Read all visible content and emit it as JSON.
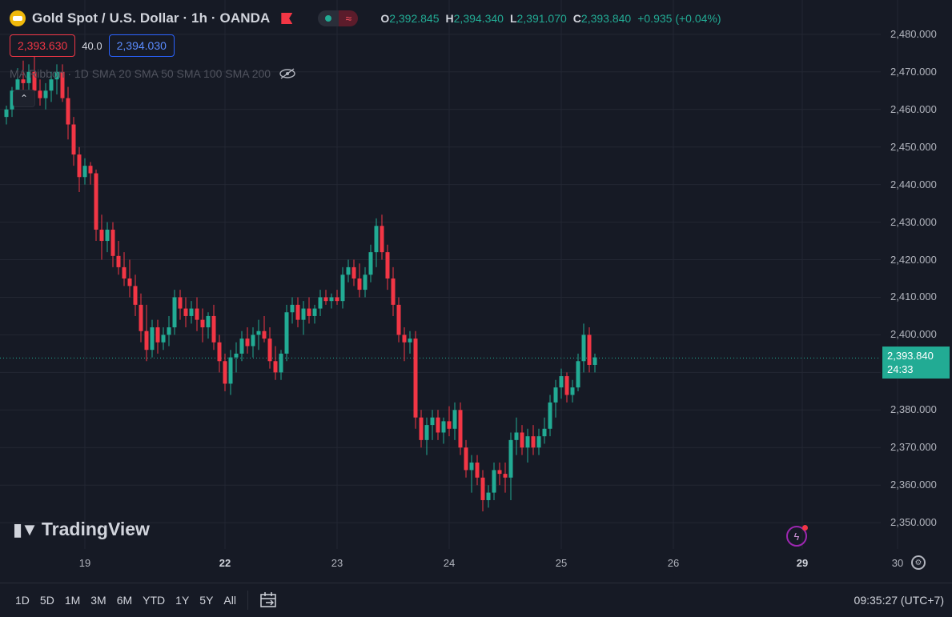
{
  "header": {
    "symbol_title": "Gold Spot / U.S. Dollar · 1h · OANDA",
    "ohlc": {
      "o_label": "O",
      "o_value": "2,392.845",
      "h_label": "H",
      "h_value": "2,394.340",
      "l_label": "L",
      "l_value": "2,391.070",
      "c_label": "C",
      "c_value": "2,393.840",
      "change": "+0.935 (+0.04%)"
    },
    "bid": "2,393.630",
    "spread": "40.0",
    "ask": "2,394.030"
  },
  "indicator": {
    "label": "MA Ribbon · 1D SMA 20 SMA 50 SMA 100 SMA 200"
  },
  "icons": {
    "logo": "gold-coin-icon",
    "flag": "flag-icon",
    "eye": "eye-crossed-icon",
    "collapse": "chevron-up-icon",
    "lightning": "lightning-icon",
    "settings": "gear-icon",
    "compare": "calendar-compare-icon"
  },
  "brand": "TradingView",
  "last_price": {
    "price": "2,393.840",
    "countdown": "24:33"
  },
  "time_ranges": [
    "1D",
    "5D",
    "1M",
    "3M",
    "6M",
    "YTD",
    "1Y",
    "5Y",
    "All"
  ],
  "clock": "09:35:27 (UTC+7)",
  "colors": {
    "up": "#22ab94",
    "down": "#f23645",
    "bg": "#161a25",
    "grid": "#232733"
  },
  "chart_data": {
    "type": "candlestick",
    "y_ticks": [
      "2,480.000",
      "2,470.000",
      "2,460.000",
      "2,450.000",
      "2,440.000",
      "2,430.000",
      "2,420.000",
      "2,410.000",
      "2,400.000",
      "2,390.000",
      "2,380.000",
      "2,370.000",
      "2,360.000",
      "2,350.000"
    ],
    "y_tick_values": [
      2480,
      2470,
      2460,
      2450,
      2440,
      2430,
      2420,
      2410,
      2400,
      2390,
      2380,
      2370,
      2360,
      2350
    ],
    "x_labels": [
      {
        "label": "19",
        "bold": false,
        "bar": 14
      },
      {
        "label": "22",
        "bold": true,
        "bar": 39
      },
      {
        "label": "23",
        "bold": false,
        "bar": 59
      },
      {
        "label": "24",
        "bold": false,
        "bar": 79
      },
      {
        "label": "25",
        "bold": false,
        "bar": 99
      },
      {
        "label": "26",
        "bold": false,
        "bar": 119
      },
      {
        "label": "29",
        "bold": true,
        "bar": 142
      },
      {
        "label": "30",
        "bold": false,
        "bar": 159
      }
    ],
    "ylim": [
      2343,
      2487
    ],
    "current_price": 2393.84,
    "ohlc": [
      [
        2458,
        2461,
        2456,
        2460
      ],
      [
        2460,
        2466,
        2458,
        2465
      ],
      [
        2465,
        2471,
        2463,
        2468
      ],
      [
        2468,
        2473,
        2464,
        2467
      ],
      [
        2467,
        2472,
        2465,
        2470
      ],
      [
        2470,
        2474,
        2466,
        2465
      ],
      [
        2465,
        2468,
        2461,
        2463
      ],
      [
        2463,
        2467,
        2460,
        2465
      ],
      [
        2465,
        2470,
        2462,
        2468
      ],
      [
        2468,
        2472,
        2464,
        2470
      ],
      [
        2470,
        2472,
        2462,
        2463
      ],
      [
        2463,
        2466,
        2452,
        2456
      ],
      [
        2456,
        2458,
        2445,
        2448
      ],
      [
        2448,
        2450,
        2438,
        2442
      ],
      [
        2442,
        2447,
        2440,
        2445
      ],
      [
        2445,
        2446,
        2440,
        2443
      ],
      [
        2443,
        2444,
        2425,
        2428
      ],
      [
        2428,
        2432,
        2420,
        2425
      ],
      [
        2425,
        2430,
        2422,
        2428
      ],
      [
        2428,
        2430,
        2418,
        2421
      ],
      [
        2421,
        2425,
        2416,
        2418
      ],
      [
        2418,
        2422,
        2413,
        2415
      ],
      [
        2415,
        2420,
        2410,
        2413
      ],
      [
        2413,
        2416,
        2405,
        2408
      ],
      [
        2408,
        2411,
        2398,
        2401
      ],
      [
        2401,
        2408,
        2393,
        2396
      ],
      [
        2396,
        2404,
        2394,
        2402
      ],
      [
        2402,
        2404,
        2395,
        2398
      ],
      [
        2398,
        2402,
        2396,
        2400
      ],
      [
        2400,
        2405,
        2397,
        2402
      ],
      [
        2402,
        2412,
        2400,
        2410
      ],
      [
        2410,
        2412,
        2404,
        2407
      ],
      [
        2407,
        2410,
        2402,
        2405
      ],
      [
        2405,
        2409,
        2403,
        2407
      ],
      [
        2407,
        2410,
        2401,
        2404
      ],
      [
        2404,
        2407,
        2398,
        2402
      ],
      [
        2402,
        2406,
        2399,
        2405
      ],
      [
        2405,
        2408,
        2396,
        2398
      ],
      [
        2398,
        2400,
        2390,
        2393
      ],
      [
        2393,
        2395,
        2385,
        2387
      ],
      [
        2387,
        2396,
        2384,
        2394
      ],
      [
        2394,
        2398,
        2390,
        2395
      ],
      [
        2395,
        2401,
        2393,
        2399
      ],
      [
        2399,
        2402,
        2395,
        2397
      ],
      [
        2397,
        2402,
        2394,
        2400
      ],
      [
        2400,
        2404,
        2396,
        2401
      ],
      [
        2401,
        2405,
        2398,
        2399
      ],
      [
        2399,
        2402,
        2391,
        2393
      ],
      [
        2393,
        2397,
        2388,
        2390
      ],
      [
        2390,
        2396,
        2388,
        2395
      ],
      [
        2395,
        2408,
        2393,
        2406
      ],
      [
        2406,
        2410,
        2403,
        2408
      ],
      [
        2408,
        2410,
        2402,
        2404
      ],
      [
        2404,
        2409,
        2400,
        2407
      ],
      [
        2407,
        2410,
        2403,
        2405
      ],
      [
        2405,
        2408,
        2403,
        2407
      ],
      [
        2407,
        2412,
        2405,
        2410
      ],
      [
        2410,
        2412,
        2408,
        2409
      ],
      [
        2409,
        2411,
        2407,
        2410
      ],
      [
        2410,
        2412,
        2408,
        2409
      ],
      [
        2409,
        2418,
        2407,
        2416
      ],
      [
        2416,
        2420,
        2414,
        2418
      ],
      [
        2418,
        2420,
        2413,
        2415
      ],
      [
        2415,
        2419,
        2410,
        2412
      ],
      [
        2412,
        2418,
        2410,
        2416
      ],
      [
        2416,
        2424,
        2414,
        2422
      ],
      [
        2422,
        2431,
        2418,
        2429
      ],
      [
        2429,
        2432,
        2420,
        2422
      ],
      [
        2422,
        2424,
        2412,
        2415
      ],
      [
        2415,
        2418,
        2405,
        2408
      ],
      [
        2408,
        2410,
        2398,
        2400
      ],
      [
        2400,
        2402,
        2393,
        2398
      ],
      [
        2398,
        2401,
        2395,
        2399
      ],
      [
        2399,
        2401,
        2375,
        2378
      ],
      [
        2378,
        2380,
        2370,
        2372
      ],
      [
        2372,
        2378,
        2368,
        2376
      ],
      [
        2376,
        2380,
        2372,
        2378
      ],
      [
        2378,
        2380,
        2372,
        2374
      ],
      [
        2374,
        2378,
        2371,
        2377
      ],
      [
        2377,
        2381,
        2373,
        2375
      ],
      [
        2375,
        2382,
        2372,
        2380
      ],
      [
        2380,
        2382,
        2368,
        2370
      ],
      [
        2370,
        2372,
        2362,
        2364
      ],
      [
        2364,
        2368,
        2358,
        2366
      ],
      [
        2366,
        2368,
        2360,
        2362
      ],
      [
        2362,
        2364,
        2353,
        2356
      ],
      [
        2356,
        2360,
        2354,
        2358
      ],
      [
        2358,
        2366,
        2356,
        2364
      ],
      [
        2364,
        2366,
        2360,
        2363
      ],
      [
        2363,
        2366,
        2358,
        2362
      ],
      [
        2362,
        2374,
        2356,
        2372
      ],
      [
        2372,
        2378,
        2368,
        2374
      ],
      [
        2374,
        2376,
        2368,
        2370
      ],
      [
        2370,
        2375,
        2366,
        2373
      ],
      [
        2373,
        2376,
        2368,
        2370
      ],
      [
        2370,
        2375,
        2368,
        2373
      ],
      [
        2373,
        2378,
        2371,
        2375
      ],
      [
        2375,
        2384,
        2373,
        2382
      ],
      [
        2382,
        2388,
        2378,
        2386
      ],
      [
        2386,
        2391,
        2383,
        2389
      ],
      [
        2389,
        2390,
        2382,
        2384
      ],
      [
        2384,
        2388,
        2382,
        2386
      ],
      [
        2386,
        2395,
        2385,
        2393
      ],
      [
        2393,
        2403,
        2390,
        2400
      ],
      [
        2400,
        2402,
        2390,
        2392
      ],
      [
        2392,
        2395,
        2390,
        2394
      ]
    ]
  }
}
